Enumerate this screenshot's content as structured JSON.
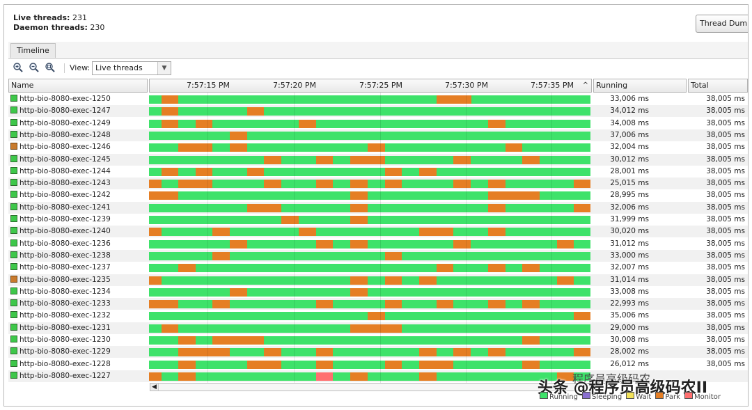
{
  "stats": {
    "live_label": "Live threads:",
    "live_value": "231",
    "daemon_label": "Daemon threads:",
    "daemon_value": "230"
  },
  "buttons": {
    "thread_dump": "Thread Dump"
  },
  "tabs": [
    {
      "label": "Timeline"
    }
  ],
  "toolbar": {
    "zoom_in_icon": "zoom-in-icon",
    "zoom_out_icon": "zoom-out-icon",
    "zoom_fit_icon": "zoom-fit-icon",
    "view_label": "View:",
    "view_selected": "Live threads"
  },
  "columns": {
    "name": "Name",
    "running": "Running",
    "total": "Total"
  },
  "timeline": {
    "ticks": [
      "7:57:15 PM",
      "7:57:20 PM",
      "7:57:25 PM",
      "7:57:30 PM",
      "7:57:35 PM"
    ],
    "sort_indicator": "^"
  },
  "colors": {
    "running": "#3ee26a",
    "park": "#e57e24",
    "monitor": "#ff6f6f"
  },
  "threads": [
    {
      "name": "http-bio-8080-exec-1250",
      "running": "33,006 ms",
      "total": "38,005 ms",
      "state": "running",
      "segments": [
        [
          0.028,
          0.066,
          "park"
        ],
        [
          0.652,
          0.73,
          "park"
        ]
      ]
    },
    {
      "name": "http-bio-8080-exec-1247",
      "running": "34,012 ms",
      "total": "38,005 ms",
      "state": "running",
      "segments": [
        [
          0.028,
          0.066,
          "park"
        ],
        [
          0.222,
          0.26,
          "park"
        ]
      ]
    },
    {
      "name": "http-bio-8080-exec-1249",
      "running": "34,008 ms",
      "total": "38,005 ms",
      "state": "running",
      "segments": [
        [
          0.028,
          0.066,
          "park"
        ],
        [
          0.105,
          0.144,
          "park"
        ],
        [
          0.339,
          0.378,
          "park"
        ],
        [
          0.768,
          0.807,
          "park"
        ]
      ]
    },
    {
      "name": "http-bio-8080-exec-1248",
      "running": "37,006 ms",
      "total": "38,005 ms",
      "state": "running",
      "segments": [
        [
          0.183,
          0.222,
          "park"
        ]
      ]
    },
    {
      "name": "http-bio-8080-exec-1246",
      "running": "32,004 ms",
      "total": "38,005 ms",
      "state": "park",
      "segments": [
        [
          0.066,
          0.144,
          "park"
        ],
        [
          0.183,
          0.222,
          "park"
        ],
        [
          0.495,
          0.534,
          "park"
        ],
        [
          0.807,
          0.845,
          "park"
        ]
      ]
    },
    {
      "name": "http-bio-8080-exec-1245",
      "running": "30,012 ms",
      "total": "38,005 ms",
      "state": "running",
      "segments": [
        [
          0.261,
          0.3,
          "park"
        ],
        [
          0.378,
          0.417,
          "park"
        ],
        [
          0.456,
          0.534,
          "park"
        ],
        [
          0.69,
          0.729,
          "park"
        ],
        [
          0.846,
          0.885,
          "park"
        ]
      ]
    },
    {
      "name": "http-bio-8080-exec-1244",
      "running": "28,001 ms",
      "total": "38,005 ms",
      "state": "running",
      "segments": [
        [
          0.028,
          0.066,
          "park"
        ],
        [
          0.105,
          0.144,
          "park"
        ],
        [
          0.222,
          0.261,
          "park"
        ],
        [
          0.534,
          0.573,
          "park"
        ],
        [
          0.612,
          0.651,
          "park"
        ]
      ]
    },
    {
      "name": "http-bio-8080-exec-1243",
      "running": "25,015 ms",
      "total": "38,005 ms",
      "state": "running",
      "segments": [
        [
          0.0,
          0.028,
          "park"
        ],
        [
          0.066,
          0.144,
          "park"
        ],
        [
          0.261,
          0.3,
          "park"
        ],
        [
          0.378,
          0.417,
          "park"
        ],
        [
          0.456,
          0.495,
          "park"
        ],
        [
          0.534,
          0.573,
          "park"
        ],
        [
          0.69,
          0.729,
          "park"
        ],
        [
          0.768,
          0.807,
          "park"
        ],
        [
          0.962,
          1.0,
          "park"
        ]
      ]
    },
    {
      "name": "http-bio-8080-exec-1242",
      "running": "28,995 ms",
      "total": "38,005 ms",
      "state": "running",
      "segments": [
        [
          0.0,
          0.066,
          "park"
        ],
        [
          0.456,
          0.495,
          "park"
        ],
        [
          0.768,
          0.885,
          "park"
        ]
      ]
    },
    {
      "name": "http-bio-8080-exec-1241",
      "running": "32,006 ms",
      "total": "38,005 ms",
      "state": "running",
      "segments": [
        [
          0.222,
          0.3,
          "park"
        ],
        [
          0.456,
          0.495,
          "park"
        ],
        [
          0.768,
          0.807,
          "park"
        ],
        [
          0.962,
          1.0,
          "park"
        ]
      ]
    },
    {
      "name": "http-bio-8080-exec-1239",
      "running": "31,999 ms",
      "total": "38,005 ms",
      "state": "running",
      "segments": [
        [
          0.3,
          0.339,
          "park"
        ],
        [
          0.456,
          0.495,
          "park"
        ]
      ]
    },
    {
      "name": "http-bio-8080-exec-1240",
      "running": "30,020 ms",
      "total": "38,005 ms",
      "state": "running",
      "segments": [
        [
          0.0,
          0.028,
          "park"
        ],
        [
          0.144,
          0.183,
          "park"
        ],
        [
          0.339,
          0.378,
          "park"
        ],
        [
          0.612,
          0.69,
          "park"
        ],
        [
          0.768,
          0.807,
          "park"
        ]
      ]
    },
    {
      "name": "http-bio-8080-exec-1236",
      "running": "31,012 ms",
      "total": "38,005 ms",
      "state": "running",
      "segments": [
        [
          0.183,
          0.222,
          "park"
        ],
        [
          0.378,
          0.417,
          "park"
        ],
        [
          0.456,
          0.495,
          "park"
        ],
        [
          0.69,
          0.729,
          "park"
        ],
        [
          0.924,
          0.962,
          "park"
        ]
      ]
    },
    {
      "name": "http-bio-8080-exec-1238",
      "running": "33,000 ms",
      "total": "38,005 ms",
      "state": "running",
      "segments": [
        [
          0.144,
          0.183,
          "park"
        ],
        [
          0.534,
          0.573,
          "park"
        ]
      ]
    },
    {
      "name": "http-bio-8080-exec-1237",
      "running": "32,007 ms",
      "total": "38,005 ms",
      "state": "running",
      "segments": [
        [
          0.066,
          0.105,
          "park"
        ],
        [
          0.651,
          0.69,
          "park"
        ],
        [
          0.768,
          0.807,
          "park"
        ],
        [
          0.846,
          0.885,
          "park"
        ]
      ]
    },
    {
      "name": "http-bio-8080-exec-1235",
      "running": "31,014 ms",
      "total": "38,005 ms",
      "state": "park",
      "segments": [
        [
          0.0,
          0.028,
          "park"
        ],
        [
          0.456,
          0.495,
          "park"
        ],
        [
          0.534,
          0.573,
          "park"
        ],
        [
          0.612,
          0.651,
          "park"
        ],
        [
          0.924,
          0.962,
          "park"
        ]
      ]
    },
    {
      "name": "http-bio-8080-exec-1234",
      "running": "33,008 ms",
      "total": "38,005 ms",
      "state": "running",
      "segments": [
        [
          0.183,
          0.222,
          "park"
        ],
        [
          0.456,
          0.495,
          "park"
        ]
      ]
    },
    {
      "name": "http-bio-8080-exec-1233",
      "running": "22,993 ms",
      "total": "38,005 ms",
      "state": "running",
      "segments": [
        [
          0.0,
          0.066,
          "park"
        ],
        [
          0.144,
          0.183,
          "park"
        ],
        [
          0.378,
          0.417,
          "park"
        ],
        [
          0.534,
          0.573,
          "park"
        ],
        [
          0.651,
          0.69,
          "park"
        ],
        [
          0.768,
          0.807,
          "park"
        ],
        [
          0.846,
          0.885,
          "park"
        ]
      ]
    },
    {
      "name": "http-bio-8080-exec-1232",
      "running": "35,006 ms",
      "total": "38,005 ms",
      "state": "running",
      "segments": [
        [
          0.495,
          0.534,
          "park"
        ],
        [
          0.962,
          1.0,
          "park"
        ]
      ]
    },
    {
      "name": "http-bio-8080-exec-1231",
      "running": "29,000 ms",
      "total": "38,005 ms",
      "state": "running",
      "segments": [
        [
          0.028,
          0.066,
          "park"
        ],
        [
          0.456,
          0.573,
          "park"
        ]
      ]
    },
    {
      "name": "http-bio-8080-exec-1230",
      "running": "30,008 ms",
      "total": "38,005 ms",
      "state": "running",
      "segments": [
        [
          0.066,
          0.105,
          "park"
        ],
        [
          0.144,
          0.261,
          "park"
        ],
        [
          0.846,
          0.885,
          "park"
        ]
      ]
    },
    {
      "name": "http-bio-8080-exec-1229",
      "running": "28,002 ms",
      "total": "38,005 ms",
      "state": "running",
      "segments": [
        [
          0.066,
          0.183,
          "park"
        ],
        [
          0.261,
          0.3,
          "park"
        ],
        [
          0.378,
          0.417,
          "park"
        ],
        [
          0.612,
          0.651,
          "park"
        ],
        [
          0.69,
          0.729,
          "park"
        ],
        [
          0.768,
          0.807,
          "park"
        ],
        [
          0.962,
          1.0,
          "park"
        ]
      ]
    },
    {
      "name": "http-bio-8080-exec-1228",
      "running": "26,012 ms",
      "total": "38,005 ms",
      "state": "running",
      "segments": [
        [
          0.066,
          0.105,
          "park"
        ],
        [
          0.222,
          0.3,
          "park"
        ],
        [
          0.378,
          0.417,
          "park"
        ],
        [
          0.534,
          0.573,
          "park"
        ],
        [
          0.612,
          0.69,
          "park"
        ],
        [
          0.846,
          0.885,
          "park"
        ]
      ]
    },
    {
      "name": "http-bio-8080-exec-1227",
      "running": "",
      "total": "",
      "state": "running",
      "segments": [
        [
          0.0,
          0.028,
          "park"
        ],
        [
          0.066,
          0.105,
          "park"
        ],
        [
          0.378,
          0.417,
          "monitor"
        ],
        [
          0.456,
          0.495,
          "park"
        ],
        [
          0.612,
          0.651,
          "park"
        ],
        [
          0.924,
          0.962,
          "park"
        ]
      ]
    }
  ],
  "legend": [
    "Running",
    "Sleeping",
    "Wait",
    "Park",
    "Monitor"
  ],
  "watermark": {
    "main": "头条 @程序员高级码农II",
    "small": "程序员高级码农"
  }
}
